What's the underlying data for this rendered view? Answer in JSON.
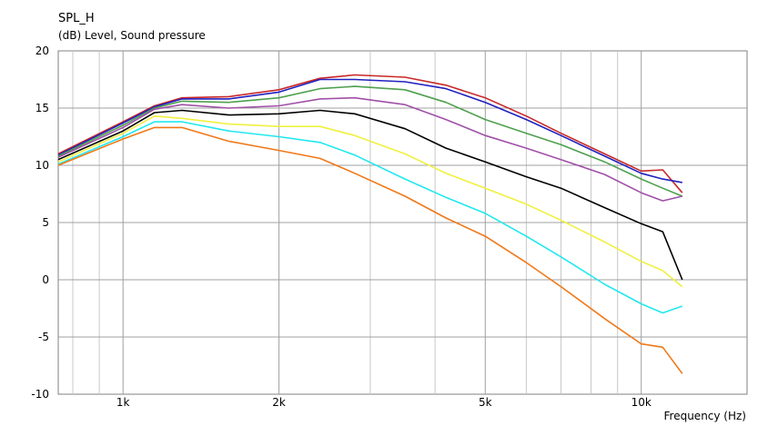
{
  "chart_data": {
    "type": "line",
    "title": "SPL_H",
    "ylabel": "(dB)  Level, Sound pressure",
    "xlabel": "Frequency  (Hz)",
    "xscale": "log",
    "xlim": [
      750,
      16000
    ],
    "ylim": [
      -10,
      20
    ],
    "grid": true,
    "x_ticks": [
      {
        "value": 1000,
        "label": "1k"
      },
      {
        "value": 2000,
        "label": "2k"
      },
      {
        "value": 5000,
        "label": "5k"
      },
      {
        "value": 10000,
        "label": "10k"
      }
    ],
    "y_ticks": [
      {
        "value": 20,
        "label": "20"
      },
      {
        "value": 15,
        "label": "15"
      },
      {
        "value": 10,
        "label": "10"
      },
      {
        "value": 5,
        "label": "5"
      },
      {
        "value": 0,
        "label": "0"
      },
      {
        "value": -5,
        "label": "-5"
      },
      {
        "value": -10,
        "label": "-10"
      }
    ],
    "x": [
      750,
      1000,
      1150,
      1300,
      1600,
      2000,
      2400,
      2800,
      3500,
      4200,
      5000,
      6000,
      7000,
      8500,
      10000,
      11000,
      12000
    ],
    "series": [
      {
        "color": "#c82828",
        "values": [
          11.0,
          13.8,
          15.2,
          15.9,
          16.0,
          16.6,
          17.6,
          17.9,
          17.7,
          17.0,
          15.9,
          14.3,
          12.8,
          11.0,
          9.5,
          9.6,
          7.6
        ]
      },
      {
        "color": "#2020c0",
        "values": [
          10.9,
          13.7,
          15.1,
          15.8,
          15.8,
          16.4,
          17.5,
          17.5,
          17.3,
          16.7,
          15.5,
          14.0,
          12.6,
          10.8,
          9.3,
          8.8,
          8.5
        ]
      },
      {
        "color": "#4ea04e",
        "values": [
          10.8,
          13.5,
          15.0,
          15.6,
          15.5,
          15.9,
          16.7,
          16.9,
          16.6,
          15.5,
          14.0,
          12.8,
          11.8,
          10.3,
          8.8,
          8.0,
          7.3
        ]
      },
      {
        "color": "#a050a8",
        "values": [
          10.7,
          13.3,
          14.9,
          15.3,
          15.0,
          15.2,
          15.8,
          15.9,
          15.3,
          14.0,
          12.6,
          11.5,
          10.5,
          9.2,
          7.6,
          6.9,
          7.3
        ]
      },
      {
        "color": "#000000",
        "values": [
          10.5,
          13.0,
          14.6,
          14.8,
          14.4,
          14.5,
          14.8,
          14.5,
          13.2,
          11.5,
          10.3,
          9.0,
          8.0,
          6.3,
          4.9,
          4.2,
          0.0
        ]
      },
      {
        "color": "#f0f040",
        "values": [
          10.3,
          12.8,
          14.3,
          14.1,
          13.6,
          13.4,
          13.4,
          12.6,
          11.0,
          9.3,
          8.0,
          6.6,
          5.2,
          3.3,
          1.6,
          0.8,
          -0.6
        ]
      },
      {
        "color": "#20e8f0",
        "values": [
          10.1,
          12.5,
          13.8,
          13.8,
          13.0,
          12.5,
          12.0,
          10.9,
          8.8,
          7.2,
          5.8,
          3.8,
          2.0,
          -0.4,
          -2.1,
          -2.9,
          -2.3
        ]
      },
      {
        "color": "#f07818",
        "values": [
          10.0,
          12.3,
          13.3,
          13.3,
          12.1,
          11.3,
          10.6,
          9.3,
          7.3,
          5.4,
          3.8,
          1.5,
          -0.6,
          -3.4,
          -5.6,
          -5.9,
          -8.2
        ]
      }
    ]
  }
}
